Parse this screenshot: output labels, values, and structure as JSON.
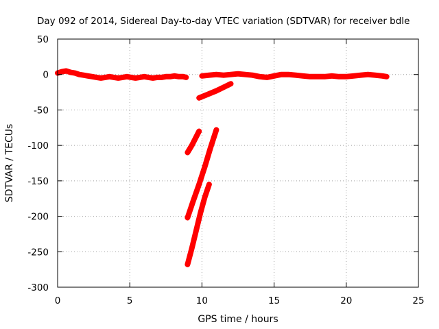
{
  "chart_data": {
    "type": "line",
    "title": "Day 092 of 2014, Sidereal Day-to-day VTEC variation (SDTVAR) for receiver bdle",
    "xlabel": "GPS time / hours",
    "ylabel": "SDTVAR / TECUs",
    "xlim": [
      0,
      25
    ],
    "ylim": [
      -300,
      50
    ],
    "xticks": [
      0,
      5,
      10,
      15,
      20,
      25
    ],
    "yticks": [
      50,
      0,
      -50,
      -100,
      -150,
      -200,
      -250,
      -300
    ],
    "grid": true,
    "color": "#ff0000",
    "series": [
      {
        "values": [
          [
            0.0,
            2
          ],
          [
            0.3,
            4
          ],
          [
            0.6,
            5
          ],
          [
            0.9,
            3
          ],
          [
            1.2,
            2
          ],
          [
            1.5,
            0
          ],
          [
            1.8,
            -1
          ],
          [
            2.1,
            -2
          ],
          [
            2.4,
            -3
          ],
          [
            2.7,
            -4
          ],
          [
            3.0,
            -5
          ],
          [
            3.3,
            -4
          ],
          [
            3.6,
            -3
          ],
          [
            3.9,
            -4
          ],
          [
            4.2,
            -5
          ],
          [
            4.5,
            -4
          ],
          [
            4.8,
            -3
          ],
          [
            5.1,
            -4
          ],
          [
            5.4,
            -5
          ],
          [
            5.7,
            -4
          ],
          [
            6.0,
            -3
          ],
          [
            6.3,
            -4
          ],
          [
            6.6,
            -5
          ],
          [
            6.9,
            -4
          ],
          [
            7.2,
            -4
          ],
          [
            7.5,
            -3
          ],
          [
            7.8,
            -3
          ],
          [
            8.1,
            -2
          ],
          [
            8.4,
            -3
          ],
          [
            8.7,
            -3
          ],
          [
            8.9,
            -4
          ]
        ]
      },
      {
        "values": [
          [
            9.8,
            -33
          ],
          [
            10.4,
            -28
          ],
          [
            11.0,
            -23
          ],
          [
            11.6,
            -17
          ],
          [
            12.0,
            -13
          ]
        ]
      },
      {
        "values": [
          [
            9.0,
            -110
          ],
          [
            9.3,
            -100
          ],
          [
            9.6,
            -88
          ],
          [
            9.8,
            -80
          ]
        ]
      },
      {
        "values": [
          [
            9.0,
            -202
          ],
          [
            9.4,
            -178
          ],
          [
            9.8,
            -155
          ],
          [
            10.2,
            -130
          ],
          [
            10.6,
            -103
          ],
          [
            11.0,
            -78
          ]
        ]
      },
      {
        "values": [
          [
            9.0,
            -268
          ],
          [
            9.3,
            -245
          ],
          [
            9.6,
            -220
          ],
          [
            9.9,
            -195
          ],
          [
            10.2,
            -173
          ],
          [
            10.5,
            -155
          ]
        ]
      },
      {
        "values": [
          [
            10.0,
            -2
          ],
          [
            10.5,
            -1
          ],
          [
            11.0,
            0
          ],
          [
            11.5,
            -1
          ],
          [
            12.0,
            0
          ],
          [
            12.5,
            1
          ],
          [
            13.0,
            0
          ],
          [
            13.5,
            -1
          ],
          [
            14.0,
            -3
          ],
          [
            14.5,
            -4
          ],
          [
            15.0,
            -2
          ],
          [
            15.5,
            0
          ],
          [
            16.0,
            0
          ],
          [
            16.5,
            -1
          ],
          [
            17.0,
            -2
          ],
          [
            17.5,
            -3
          ],
          [
            18.0,
            -3
          ],
          [
            18.5,
            -3
          ],
          [
            19.0,
            -2
          ],
          [
            19.5,
            -3
          ],
          [
            20.0,
            -3
          ],
          [
            20.5,
            -2
          ],
          [
            21.0,
            -1
          ],
          [
            21.5,
            0
          ],
          [
            22.0,
            -1
          ],
          [
            22.5,
            -2
          ],
          [
            22.8,
            -3
          ]
        ]
      }
    ]
  }
}
